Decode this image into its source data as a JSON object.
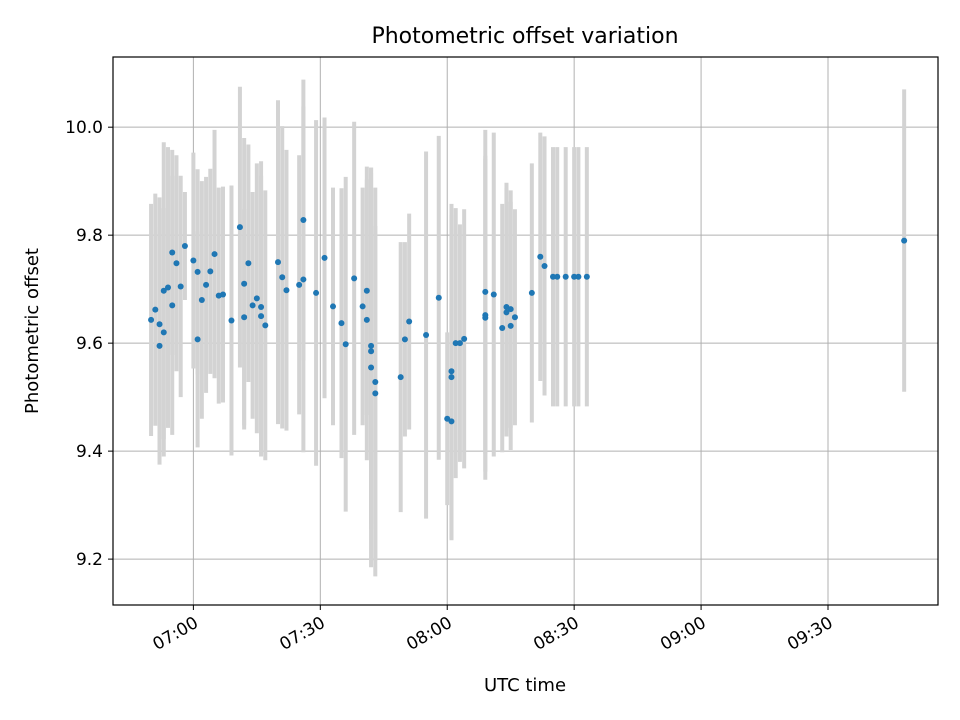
{
  "chart_data": {
    "type": "scatter",
    "title": "Photometric offset variation",
    "xlabel": "UTC time",
    "ylabel": "Photometric offset",
    "x_axis_type": "time",
    "xlim": [
      "06:41",
      "09:56"
    ],
    "ylim": [
      9.115,
      10.13
    ],
    "x_tick_labels": [
      "07:00",
      "07:30",
      "08:00",
      "08:30",
      "09:00",
      "09:30"
    ],
    "y_tick_labels": [
      "9.2",
      "9.4",
      "9.6",
      "9.8",
      "10.0"
    ],
    "y_ticks": [
      9.2,
      9.4,
      9.6,
      9.8,
      10.0
    ],
    "grid": true,
    "marker_color": "#1f77b4",
    "errorbar_color": "#d3d3d3",
    "points": [
      [
        "06:50",
        9.643,
        0.215
      ],
      [
        "06:51",
        9.662,
        0.215
      ],
      [
        "06:52",
        9.595,
        0.22
      ],
      [
        "06:52",
        9.635,
        0.235
      ],
      [
        "06:53",
        9.62,
        0.23
      ],
      [
        "06:53",
        9.697,
        0.275
      ],
      [
        "06:54",
        9.703,
        0.26
      ],
      [
        "06:55",
        9.67,
        0.24
      ],
      [
        "06:55",
        9.768,
        0.19
      ],
      [
        "06:56",
        9.748,
        0.2
      ],
      [
        "06:57",
        9.705,
        0.205
      ],
      [
        "06:58",
        9.78,
        0.1
      ],
      [
        "07:00",
        9.753,
        0.2
      ],
      [
        "07:01",
        9.732,
        0.19
      ],
      [
        "07:01",
        9.607,
        0.2
      ],
      [
        "07:02",
        9.68,
        0.22
      ],
      [
        "07:03",
        9.708,
        0.2
      ],
      [
        "07:04",
        9.733,
        0.19
      ],
      [
        "07:05",
        9.765,
        0.23
      ],
      [
        "07:06",
        9.688,
        0.2
      ],
      [
        "07:07",
        9.69,
        0.2
      ],
      [
        "07:09",
        9.642,
        0.25
      ],
      [
        "07:11",
        9.815,
        0.26
      ],
      [
        "07:12",
        9.648,
        0.2
      ],
      [
        "07:12",
        9.71,
        0.27
      ],
      [
        "07:13",
        9.748,
        0.22
      ],
      [
        "07:14",
        9.67,
        0.21
      ],
      [
        "07:15",
        9.683,
        0.25
      ],
      [
        "07:16",
        9.667,
        0.27
      ],
      [
        "07:16",
        9.65,
        0.26
      ],
      [
        "07:17",
        9.633,
        0.25
      ],
      [
        "07:20",
        9.75,
        0.3
      ],
      [
        "07:21",
        9.722,
        0.28
      ],
      [
        "07:22",
        9.698,
        0.26
      ],
      [
        "07:25",
        9.708,
        0.24
      ],
      [
        "07:26",
        9.718,
        0.32
      ],
      [
        "07:26",
        9.828,
        0.26
      ],
      [
        "07:29",
        9.693,
        0.32
      ],
      [
        "07:31",
        9.758,
        0.26
      ],
      [
        "07:33",
        9.668,
        0.22
      ],
      [
        "07:35",
        9.637,
        0.25
      ],
      [
        "07:36",
        9.598,
        0.31
      ],
      [
        "07:38",
        9.72,
        0.29
      ],
      [
        "07:40",
        9.668,
        0.22
      ],
      [
        "07:41",
        9.697,
        0.23
      ],
      [
        "07:41",
        9.643,
        0.26
      ],
      [
        "07:42",
        9.595,
        0.33
      ],
      [
        "07:42",
        9.585,
        0.33
      ],
      [
        "07:42",
        9.555,
        0.37
      ],
      [
        "07:43",
        9.528,
        0.36
      ],
      [
        "07:43",
        9.507,
        0.31
      ],
      [
        "07:49",
        9.537,
        0.25
      ],
      [
        "07:50",
        9.607,
        0.18
      ],
      [
        "07:51",
        9.64,
        0.2
      ],
      [
        "07:55",
        9.615,
        0.34
      ],
      [
        "07:58",
        9.684,
        0.3
      ],
      [
        "08:00",
        9.46,
        0.16
      ],
      [
        "08:01",
        9.455,
        0.22
      ],
      [
        "08:01",
        9.537,
        0.3
      ],
      [
        "08:01",
        9.548,
        0.31
      ],
      [
        "08:02",
        9.6,
        0.25
      ],
      [
        "08:03",
        9.6,
        0.22
      ],
      [
        "08:04",
        9.608,
        0.24
      ],
      [
        "08:09",
        9.652,
        0.29
      ],
      [
        "08:09",
        9.647,
        0.3
      ],
      [
        "08:09",
        9.695,
        0.3
      ],
      [
        "08:11",
        9.69,
        0.3
      ],
      [
        "08:13",
        9.628,
        0.23
      ],
      [
        "08:14",
        9.657,
        0.23
      ],
      [
        "08:14",
        9.667,
        0.23
      ],
      [
        "08:15",
        9.663,
        0.22
      ],
      [
        "08:15",
        9.632,
        0.23
      ],
      [
        "08:16",
        9.648,
        0.2
      ],
      [
        "08:20",
        9.693,
        0.24
      ],
      [
        "08:22",
        9.76,
        0.23
      ],
      [
        "08:23",
        9.743,
        0.24
      ],
      [
        "08:25",
        9.723,
        0.24
      ],
      [
        "08:26",
        9.723,
        0.24
      ],
      [
        "08:28",
        9.723,
        0.24
      ],
      [
        "08:30",
        9.723,
        0.24
      ],
      [
        "08:31",
        9.723,
        0.24
      ],
      [
        "08:33",
        9.723,
        0.24
      ],
      [
        "09:48",
        9.79,
        0.28
      ]
    ]
  }
}
